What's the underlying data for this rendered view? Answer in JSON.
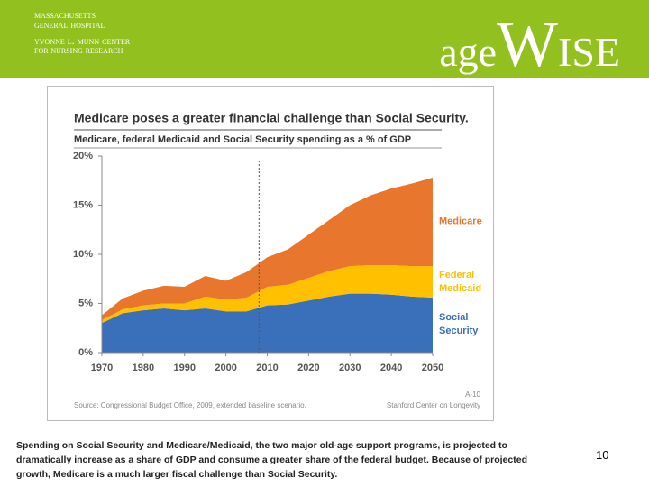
{
  "header": {
    "hospital": "Massachusetts General Hospital",
    "center": "Yvonne L. Munn Center",
    "center_sub": "for Nursing Research",
    "brand_left": "age",
    "brand_w": "W",
    "brand_right": "ISE"
  },
  "chart_data": {
    "type": "stacked_area",
    "title": "Medicare poses a greater financial challenge than Social Security.",
    "subtitle": "Medicare, federal Medicaid and Social Security spending as a % of GDP",
    "x": [
      1970,
      1975,
      1980,
      1985,
      1990,
      1995,
      2000,
      2005,
      2010,
      2015,
      2020,
      2025,
      2030,
      2035,
      2040,
      2045,
      2050
    ],
    "series": [
      {
        "name": "Social Security",
        "color": "#3a6fba",
        "values": [
          3.0,
          4.0,
          4.3,
          4.5,
          4.3,
          4.5,
          4.2,
          4.2,
          4.8,
          4.9,
          5.3,
          5.7,
          6.0,
          6.0,
          5.9,
          5.7,
          5.6
        ]
      },
      {
        "name": "Federal Medicaid",
        "color": "#ffc000",
        "values": [
          0.3,
          0.4,
          0.5,
          0.5,
          0.7,
          1.2,
          1.2,
          1.4,
          1.9,
          2.0,
          2.3,
          2.6,
          2.8,
          2.9,
          3.0,
          3.1,
          3.2
        ]
      },
      {
        "name": "Medicare",
        "color": "#e8762c",
        "values": [
          0.5,
          1.1,
          1.5,
          1.8,
          1.7,
          2.1,
          1.9,
          2.6,
          3.0,
          3.6,
          4.4,
          5.2,
          6.2,
          7.1,
          7.8,
          8.4,
          9.0
        ]
      }
    ],
    "xlim": [
      1970,
      2050
    ],
    "xticks": [
      1970,
      1980,
      1990,
      2000,
      2010,
      2020,
      2030,
      2040,
      2050
    ],
    "ylim": [
      0,
      20
    ],
    "yticks": [
      {
        "value": 0,
        "label": "0%"
      },
      {
        "value": 5,
        "label": "5%"
      },
      {
        "value": 10,
        "label": "10%"
      },
      {
        "value": 15,
        "label": "15%"
      },
      {
        "value": 20,
        "label": "20%"
      }
    ],
    "reference_x": 2008,
    "source": "Source: Congressional Budget Office, 2009, extended baseline scenario.",
    "page_code": "A-10",
    "credit": "Stanford Center on Longevity"
  },
  "caption": "Spending on Social Security and Medicare/Medicaid, the two major old-age support programs, is projected to dramatically increase as a share of GDP and consume a greater share of the federal budget. Because of projected growth, Medicare is a much larger fiscal challenge than Social Security.",
  "page_number": "10"
}
